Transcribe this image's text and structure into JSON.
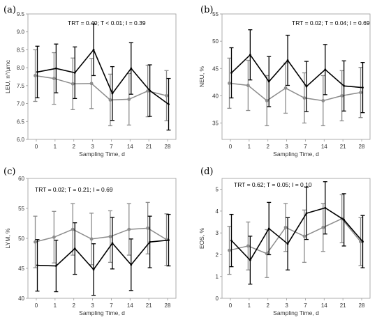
{
  "chart_data": [
    {
      "type": "line",
      "panel": "(a)",
      "annotation": "TRT = 0.40; T < 0.01; I = 0.39",
      "xlabel": "Sampling Time, d",
      "ylabel": "LEU, n°/µmc",
      "categories": [
        "0",
        "1",
        "2",
        "3",
        "7",
        "14",
        "21",
        "28"
      ],
      "ylim": [
        6.0,
        9.5
      ],
      "yticks": [
        "6.0",
        "6.5",
        "7.0",
        "7.5",
        "8.0",
        "8.5",
        "9.0",
        "9.5"
      ],
      "series": [
        {
          "color": "#000000",
          "values": [
            7.88,
            7.98,
            7.86,
            8.5,
            7.28,
            7.98,
            7.36,
            6.98
          ],
          "err": [
            0.72,
            0.68,
            0.72,
            0.72,
            0.75,
            0.72,
            0.72,
            0.72
          ]
        },
        {
          "color": "#8c8c8c",
          "values": [
            7.78,
            7.7,
            7.55,
            7.56,
            7.1,
            7.12,
            7.35,
            7.22
          ],
          "err": [
            0.72,
            0.72,
            0.72,
            0.7,
            0.72,
            0.72,
            0.72,
            0.7
          ]
        }
      ]
    },
    {
      "type": "line",
      "panel": "(b)",
      "annotation": "TRT = 0.02; T = 0.04; I = 0.69",
      "xlabel": "Sampling Time, d",
      "ylabel": "NEU, %",
      "categories": [
        "0",
        "1",
        "2",
        "3",
        "7",
        "14",
        "21",
        "28"
      ],
      "ylim": [
        32,
        55
      ],
      "yticks": [
        "35",
        "40",
        "45",
        "50",
        "55"
      ],
      "series": [
        {
          "color": "#000000",
          "values": [
            44.2,
            47.5,
            42.6,
            46.5,
            41.7,
            44.8,
            41.8,
            41.5
          ],
          "err": [
            4.6,
            4.6,
            4.6,
            4.6,
            4.6,
            4.6,
            4.6,
            4.6
          ]
        },
        {
          "color": "#8c8c8c",
          "values": [
            42.3,
            41.9,
            39.1,
            41.4,
            39.6,
            39.1,
            40.0,
            40.6
          ],
          "err": [
            4.6,
            4.6,
            4.6,
            4.6,
            4.6,
            4.6,
            4.6,
            4.6
          ]
        }
      ]
    },
    {
      "type": "line",
      "panel": "(c)",
      "annotation": "TRT = 0.02; T = 0.21; I = 0.69",
      "xlabel": "Sampling Time, d",
      "ylabel": "LYM, %",
      "categories": [
        "0",
        "1",
        "2",
        "3",
        "7",
        "14",
        "21",
        "28"
      ],
      "ylim": [
        40,
        60
      ],
      "yticks": [
        "40",
        "45",
        "50",
        "55",
        "60"
      ],
      "series": [
        {
          "color": "#000000",
          "values": [
            45.5,
            45.4,
            48.3,
            44.8,
            49.2,
            45.6,
            49.4,
            49.7
          ],
          "err": [
            4.3,
            4.3,
            4.3,
            4.3,
            4.3,
            4.3,
            4.3,
            4.3
          ]
        },
        {
          "color": "#8c8c8c",
          "values": [
            49.4,
            50.2,
            51.5,
            49.9,
            50.3,
            51.5,
            51.7,
            49.8
          ],
          "err": [
            4.3,
            4.3,
            4.3,
            4.3,
            4.3,
            4.3,
            4.3,
            4.3
          ]
        }
      ]
    },
    {
      "type": "line",
      "panel": "(d)",
      "annotation": "TRT = 0.62; T = 0.05; I = 0.10",
      "xlabel": "Sampling Time, d",
      "ylabel": "EOS, %",
      "categories": [
        "0",
        "1",
        "2",
        "3",
        "7",
        "14",
        "21",
        "28"
      ],
      "ylim": [
        0,
        5.5
      ],
      "yticks": [
        "0",
        "1",
        "2",
        "3",
        "4",
        "5"
      ],
      "series": [
        {
          "color": "#000000",
          "values": [
            2.65,
            1.75,
            3.2,
            2.5,
            3.9,
            4.15,
            3.6,
            2.6
          ],
          "err": [
            1.2,
            1.1,
            1.2,
            1.2,
            1.2,
            1.2,
            1.2,
            1.2
          ]
        },
        {
          "color": "#8c8c8c",
          "values": [
            2.2,
            2.4,
            2.05,
            3.25,
            2.85,
            3.25,
            3.65,
            2.6
          ],
          "err": [
            1.1,
            1.1,
            1.1,
            1.1,
            1.2,
            1.1,
            1.1,
            1.1
          ]
        }
      ]
    }
  ]
}
